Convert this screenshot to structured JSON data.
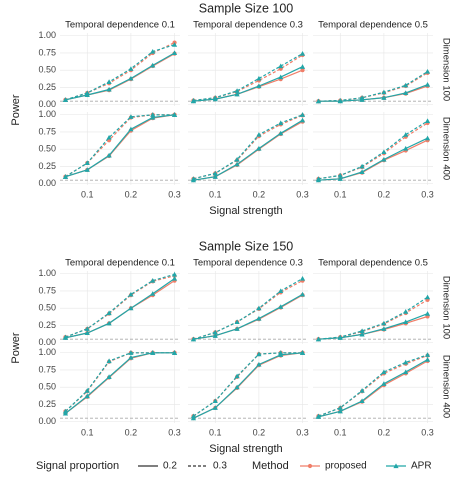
{
  "chart_data": [
    {
      "type": "line",
      "title": "Sample Size 100",
      "x_label": "Signal strength",
      "y_label": "Power",
      "col_labels": [
        "Temporal dependence 0.1",
        "Temporal dependence 0.3",
        "Temporal dependence 0.5"
      ],
      "row_labels": [
        "Dimension 100",
        "Dimension 400"
      ],
      "x": [
        0.05,
        0.1,
        0.15,
        0.2,
        0.25,
        0.3
      ],
      "xlim": [
        0.0375,
        0.3125
      ],
      "xticks": [
        0.1,
        0.2,
        0.3
      ],
      "ylim": [
        -0.02,
        1.04
      ],
      "yticks": [
        {
          "value": 0,
          "label": "0.00"
        },
        {
          "value": 0.25,
          "label": "0.25"
        },
        {
          "value": 0.5,
          "label": "0.50"
        },
        {
          "value": 0.75,
          "label": "0.75"
        },
        {
          "value": 1,
          "label": "1.00"
        }
      ],
      "reference_line": 0.05,
      "grid": true,
      "panels": [
        [
          {
            "values": [
              [
                [
                  0.07,
                  0.14,
                  0.21,
                  0.37,
                  0.56,
                  0.74
                ],
                [
                  0.07,
                  0.17,
                  0.31,
                  0.5,
                  0.75,
                  0.9
                ]
              ],
              [
                [
                  0.07,
                  0.14,
                  0.22,
                  0.38,
                  0.57,
                  0.75
                ],
                [
                  0.07,
                  0.17,
                  0.33,
                  0.52,
                  0.77,
                  0.87
                ]
              ]
            ]
          },
          {
            "values": [
              [
                [
                  0.05,
                  0.08,
                  0.15,
                  0.26,
                  0.37,
                  0.5
                ],
                [
                  0.06,
                  0.1,
                  0.19,
                  0.35,
                  0.52,
                  0.72
                ]
              ],
              [
                [
                  0.05,
                  0.08,
                  0.15,
                  0.27,
                  0.4,
                  0.55
                ],
                [
                  0.06,
                  0.1,
                  0.2,
                  0.38,
                  0.56,
                  0.74
                ]
              ]
            ]
          },
          {
            "values": [
              [
                [
                  0.05,
                  0.05,
                  0.07,
                  0.1,
                  0.16,
                  0.27
                ],
                [
                  0.05,
                  0.06,
                  0.1,
                  0.17,
                  0.27,
                  0.46
                ]
              ],
              [
                [
                  0.05,
                  0.05,
                  0.07,
                  0.1,
                  0.17,
                  0.29
                ],
                [
                  0.05,
                  0.06,
                  0.1,
                  0.18,
                  0.28,
                  0.48
                ]
              ]
            ]
          }
        ],
        [
          {
            "values": [
              [
                [
                  0.1,
                  0.2,
                  0.4,
                  0.77,
                  0.95,
                  1
                ],
                [
                  0.1,
                  0.3,
                  0.63,
                  0.96,
                  1,
                  1
                ]
              ],
              [
                [
                  0.1,
                  0.2,
                  0.41,
                  0.79,
                  0.96,
                  1
                ],
                [
                  0.1,
                  0.3,
                  0.67,
                  0.97,
                  1,
                  1
                ]
              ]
            ]
          },
          {
            "values": [
              [
                [
                  0.05,
                  0.1,
                  0.27,
                  0.5,
                  0.72,
                  0.9
                ],
                [
                  0.07,
                  0.15,
                  0.34,
                  0.69,
                  0.86,
                  0.99
                ]
              ],
              [
                [
                  0.05,
                  0.1,
                  0.28,
                  0.51,
                  0.73,
                  0.92
                ],
                [
                  0.07,
                  0.15,
                  0.35,
                  0.71,
                  0.88,
                  1
                ]
              ]
            ]
          },
          {
            "values": [
              [
                [
                  0.05,
                  0.07,
                  0.16,
                  0.34,
                  0.48,
                  0.63
                ],
                [
                  0.07,
                  0.12,
                  0.24,
                  0.44,
                  0.68,
                  0.88
                ]
              ],
              [
                [
                  0.05,
                  0.07,
                  0.17,
                  0.35,
                  0.51,
                  0.66
                ],
                [
                  0.07,
                  0.12,
                  0.25,
                  0.46,
                  0.71,
                  0.91
                ]
              ]
            ]
          }
        ]
      ]
    },
    {
      "type": "line",
      "title": "Sample Size 150",
      "x_label": "Signal strength",
      "y_label": "Power",
      "col_labels": [
        "Temporal dependence 0.1",
        "Temporal dependence 0.3",
        "Temporal dependence 0.5"
      ],
      "row_labels": [
        "Dimension 100",
        "Dimension 400"
      ],
      "x": [
        0.05,
        0.1,
        0.15,
        0.2,
        0.25,
        0.3
      ],
      "xlim": [
        0.0375,
        0.3125
      ],
      "xticks": [
        0.1,
        0.2,
        0.3
      ],
      "ylim": [
        -0.02,
        1.04
      ],
      "yticks": [
        {
          "value": 0,
          "label": "0.00"
        },
        {
          "value": 0.25,
          "label": "0.25"
        },
        {
          "value": 0.5,
          "label": "0.50"
        },
        {
          "value": 0.75,
          "label": "0.75"
        },
        {
          "value": 1,
          "label": "1.00"
        }
      ],
      "reference_line": 0.05,
      "grid": true,
      "panels": [
        [
          {
            "values": [
              [
                [
                  0.07,
                  0.14,
                  0.28,
                  0.5,
                  0.69,
                  0.9
                ],
                [
                  0.08,
                  0.2,
                  0.42,
                  0.69,
                  0.89,
                  0.97
                ]
              ],
              [
                [
                  0.07,
                  0.14,
                  0.28,
                  0.5,
                  0.71,
                  0.93
                ],
                [
                  0.08,
                  0.2,
                  0.43,
                  0.7,
                  0.9,
                  0.99
                ]
              ]
            ]
          },
          {
            "values": [
              [
                [
                  0.05,
                  0.1,
                  0.2,
                  0.34,
                  0.51,
                  0.69
                ],
                [
                  0.05,
                  0.15,
                  0.3,
                  0.49,
                  0.73,
                  0.9
                ]
              ],
              [
                [
                  0.05,
                  0.1,
                  0.2,
                  0.35,
                  0.52,
                  0.7
                ],
                [
                  0.05,
                  0.15,
                  0.3,
                  0.5,
                  0.75,
                  0.93
                ]
              ]
            ]
          },
          {
            "values": [
              [
                [
                  0.05,
                  0.07,
                  0.12,
                  0.19,
                  0.28,
                  0.38
                ],
                [
                  0.05,
                  0.08,
                  0.16,
                  0.27,
                  0.43,
                  0.62
                ]
              ],
              [
                [
                  0.05,
                  0.07,
                  0.12,
                  0.2,
                  0.3,
                  0.42
                ],
                [
                  0.05,
                  0.08,
                  0.17,
                  0.28,
                  0.45,
                  0.66
                ]
              ]
            ]
          }
        ],
        [
          {
            "values": [
              [
                [
                  0.12,
                  0.36,
                  0.64,
                  0.92,
                  1,
                  1
                ],
                [
                  0.15,
                  0.44,
                  0.87,
                  1,
                  1,
                  1
                ]
              ],
              [
                [
                  0.12,
                  0.37,
                  0.65,
                  0.93,
                  1,
                  1
                ],
                [
                  0.15,
                  0.45,
                  0.88,
                  1,
                  1,
                  1
                ]
              ]
            ]
          },
          {
            "values": [
              [
                [
                  0.05,
                  0.2,
                  0.49,
                  0.82,
                  0.96,
                  1
                ],
                [
                  0.08,
                  0.3,
                  0.65,
                  0.98,
                  1,
                  1
                ]
              ],
              [
                [
                  0.05,
                  0.2,
                  0.5,
                  0.83,
                  0.97,
                  1
                ],
                [
                  0.08,
                  0.3,
                  0.66,
                  0.98,
                  1,
                  1
                ]
              ]
            ]
          },
          {
            "values": [
              [
                [
                  0.07,
                  0.15,
                  0.29,
                  0.53,
                  0.7,
                  0.88
                ],
                [
                  0.08,
                  0.2,
                  0.44,
                  0.7,
                  0.84,
                  0.96
                ]
              ],
              [
                [
                  0.07,
                  0.15,
                  0.3,
                  0.55,
                  0.72,
                  0.9
                ],
                [
                  0.08,
                  0.2,
                  0.45,
                  0.72,
                  0.86,
                  0.97
                ]
              ]
            ]
          }
        ]
      ]
    }
  ],
  "legend": {
    "proportion_title": "Signal proportion",
    "proportions": [
      {
        "name": "0.2",
        "dash": "solid"
      },
      {
        "name": "0.3",
        "dash": "dashed"
      }
    ],
    "method_title": "Method",
    "methods": [
      {
        "name": "proposed",
        "color": "#f07e69",
        "marker": "circle"
      },
      {
        "name": "APR",
        "color": "#22a6a8",
        "marker": "triangle"
      }
    ]
  }
}
